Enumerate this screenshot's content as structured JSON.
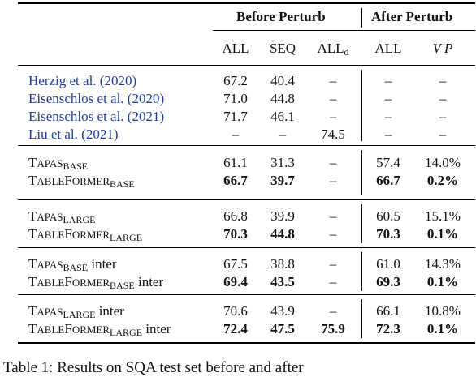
{
  "header": {
    "group_before": "Before Perturb",
    "group_after": "After Perturb",
    "col_all": "ALL",
    "col_seq": "SEQ",
    "col_alld_main": "ALL",
    "col_alld_sub": "d",
    "col_all_after": "ALL",
    "col_vp": "V P"
  },
  "prior_rows": [
    {
      "author": "Herzig et al. (",
      "year": "2020",
      "close": ")",
      "all": "67.2",
      "seq": "40.4",
      "alld": "–",
      "after_all": "–",
      "vp": "–"
    },
    {
      "author": "Eisenschlos et al. (",
      "year": "2020",
      "close": ")",
      "all": "71.0",
      "seq": "44.8",
      "alld": "–",
      "after_all": "–",
      "vp": "–"
    },
    {
      "author": "Eisenschlos et al. (",
      "year": "2021",
      "close": ")",
      "all": "71.7",
      "seq": "46.1",
      "alld": "–",
      "after_all": "–",
      "vp": "–"
    },
    {
      "author": "Liu et al. (",
      "year": "2021",
      "close": ")",
      "all": "–",
      "seq": "–",
      "alld": "74.5",
      "after_all": "–",
      "vp": "–"
    }
  ],
  "groups": [
    {
      "rows": [
        {
          "name": {
            "first": "T",
            "rest": "APAS",
            "sub": "BASE",
            "suffix": ""
          },
          "all": "61.1",
          "seq": "31.3",
          "alld": "–",
          "after_all": "57.4",
          "vp": "14.0%",
          "bold": false,
          "alld_bold": false
        },
        {
          "name": {
            "first": "T",
            "rest": "ABLE",
            "first2": "F",
            "rest2": "ORMER",
            "sub": "BASE",
            "suffix": ""
          },
          "all": "66.7",
          "seq": "39.7",
          "alld": "–",
          "after_all": "66.7",
          "vp": "0.2%",
          "bold": true,
          "alld_bold": false
        }
      ]
    },
    {
      "rows": [
        {
          "name": {
            "first": "T",
            "rest": "APAS",
            "sub": "LARGE",
            "suffix": ""
          },
          "all": "66.8",
          "seq": "39.9",
          "alld": "–",
          "after_all": "60.5",
          "vp": "15.1%",
          "bold": false,
          "alld_bold": false
        },
        {
          "name": {
            "first": "T",
            "rest": "ABLE",
            "first2": "F",
            "rest2": "ORMER",
            "sub": "LARGE",
            "suffix": ""
          },
          "all": "70.3",
          "seq": "44.8",
          "alld": "–",
          "after_all": "70.3",
          "vp": "0.1%",
          "bold": true,
          "alld_bold": false
        }
      ]
    },
    {
      "rows": [
        {
          "name": {
            "first": "T",
            "rest": "APAS",
            "sub": "BASE",
            "suffix": " inter"
          },
          "all": "67.5",
          "seq": "38.8",
          "alld": "–",
          "after_all": "61.0",
          "vp": "14.3%",
          "bold": false,
          "alld_bold": false
        },
        {
          "name": {
            "first": "T",
            "rest": "ABLE",
            "first2": "F",
            "rest2": "ORMER",
            "sub": "BASE",
            "suffix": " inter"
          },
          "all": "69.4",
          "seq": "43.5",
          "alld": "–",
          "after_all": "69.3",
          "vp": "0.1%",
          "bold": true,
          "alld_bold": false
        }
      ]
    },
    {
      "rows": [
        {
          "name": {
            "first": "T",
            "rest": "APAS",
            "sub": "LARGE",
            "suffix": " inter"
          },
          "all": "70.6",
          "seq": "43.9",
          "alld": "–",
          "after_all": "66.1",
          "vp": "10.8%",
          "bold": false,
          "alld_bold": false
        },
        {
          "name": {
            "first": "T",
            "rest": "ABLE",
            "first2": "F",
            "rest2": "ORMER",
            "sub": "LARGE",
            "suffix": " inter"
          },
          "all": "72.4",
          "seq": "47.5",
          "alld": "75.9",
          "after_all": "72.3",
          "vp": "0.1%",
          "bold": true,
          "alld_bold": true
        }
      ]
    }
  ],
  "caption": "Table 1:  Results on SQA test set before and after"
}
